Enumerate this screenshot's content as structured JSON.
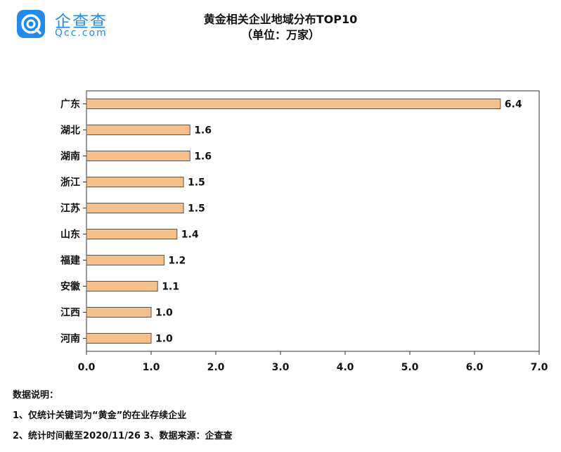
{
  "brand": {
    "name_cn": "企查查",
    "name_en": "Qcc.com",
    "color": "#1f8af0"
  },
  "chart_data": {
    "type": "bar",
    "orientation": "horizontal",
    "title": "黄金相关企业地域分布TOP10",
    "subtitle": "（单位：万家）",
    "categories": [
      "广东",
      "湖北",
      "湖南",
      "浙江",
      "江苏",
      "山东",
      "福建",
      "安徽",
      "江西",
      "河南"
    ],
    "values": [
      6.4,
      1.6,
      1.6,
      1.5,
      1.5,
      1.4,
      1.2,
      1.1,
      1.0,
      1.0
    ],
    "value_labels": [
      "6.4",
      "1.6",
      "1.6",
      "1.5",
      "1.5",
      "1.4",
      "1.2",
      "1.1",
      "1.0",
      "1.0"
    ],
    "xlim": [
      0,
      7
    ],
    "xticks": [
      "0.0",
      "1.0",
      "2.0",
      "3.0",
      "4.0",
      "5.0",
      "6.0",
      "7.0"
    ],
    "bar_color": "#f5c089",
    "bar_edge_color": "#555555",
    "grid": false,
    "legend": "none"
  },
  "notes": {
    "heading": "数据说明：",
    "line1": "1、仅统计关键词为“黄金”的在业存续企业",
    "line2": "2、统计时间截至2020/11/26  3、数据来源：企查查"
  }
}
